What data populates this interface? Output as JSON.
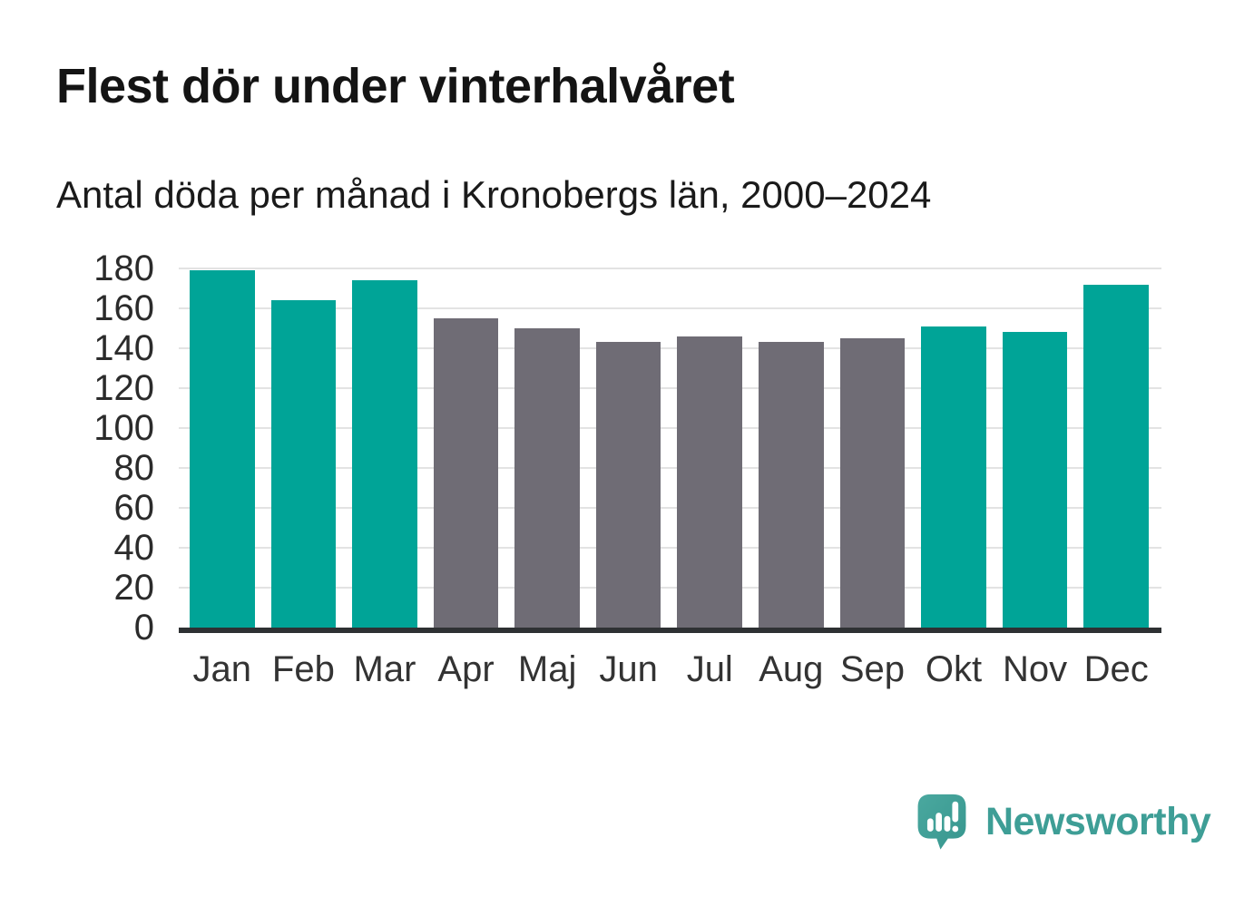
{
  "title": "Flest dör under vinterhalvåret",
  "subtitle": "Antal döda per månad i Kronobergs län, 2000–2024",
  "footer": {
    "brand": "Newsworthy",
    "logo_icon": "speech-bubble-bar-chart-exclamation"
  },
  "colors": {
    "teal": "#00a497",
    "gray": "#6f6c75",
    "logo_teal": "#3e9e96",
    "gridline": "#e3e3e3",
    "axis_line": "#2e3133",
    "text": "#1a1a1a"
  },
  "chart_data": {
    "type": "bar",
    "title": "Flest dör under vinterhalvåret",
    "subtitle": "Antal döda per månad i Kronobergs län, 2000–2024",
    "categories": [
      "Jan",
      "Feb",
      "Mar",
      "Apr",
      "Maj",
      "Jun",
      "Jul",
      "Aug",
      "Sep",
      "Okt",
      "Nov",
      "Dec"
    ],
    "values": [
      179,
      164,
      174,
      155,
      150,
      143,
      146,
      143,
      145,
      151,
      148,
      172
    ],
    "bar_colors": [
      "teal",
      "teal",
      "teal",
      "gray",
      "gray",
      "gray",
      "gray",
      "gray",
      "gray",
      "teal",
      "teal",
      "teal"
    ],
    "xlabel": "",
    "ylabel": "",
    "ylim": [
      0,
      180
    ],
    "yticks": [
      0,
      20,
      40,
      60,
      80,
      100,
      120,
      140,
      160,
      180
    ],
    "grid": "horizontal",
    "legend": "none"
  }
}
